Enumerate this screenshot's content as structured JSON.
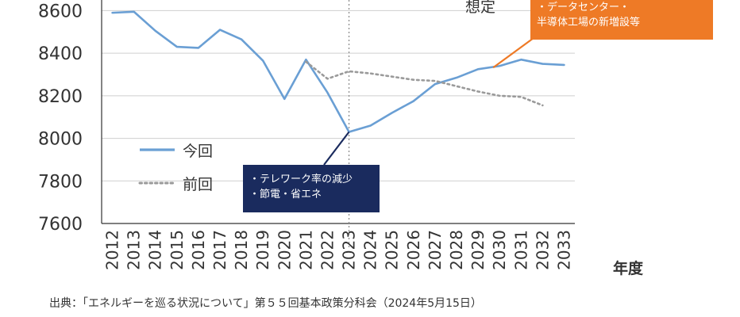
{
  "chart_data": {
    "type": "line",
    "x": [
      "2012",
      "2013",
      "2014",
      "2015",
      "2016",
      "2017",
      "2018",
      "2019",
      "2020",
      "2021",
      "2022",
      "2023",
      "2024",
      "2025",
      "2026",
      "2027",
      "2028",
      "2029",
      "2030",
      "2031",
      "2032",
      "2033"
    ],
    "series": [
      {
        "name": "今回",
        "style": "solid",
        "color": "#6a9fd4",
        "values": [
          8590,
          8595,
          8505,
          8430,
          8425,
          8510,
          8465,
          8365,
          8185,
          8370,
          8215,
          8030,
          8060,
          8120,
          8175,
          8255,
          8285,
          8325,
          8340,
          8370,
          8350,
          8345
        ]
      },
      {
        "name": "前回",
        "style": "dotted",
        "color": "#9a9a9a",
        "values": [
          null,
          null,
          null,
          null,
          null,
          null,
          null,
          null,
          null,
          8360,
          8280,
          8315,
          8305,
          8290,
          8275,
          8270,
          8245,
          8220,
          8200,
          8195,
          8155,
          null
        ]
      }
    ],
    "yticks": [
      7600,
      7800,
      8000,
      8200,
      8400,
      8600
    ],
    "ylim": [
      7600,
      8650
    ],
    "xlabel": "年度",
    "ylabel": "",
    "grid": true,
    "legend_position": "center-left",
    "vertical_marker_at": "2023"
  },
  "annotations": {
    "assume_label": "想定",
    "orange_callout": [
      "・データセンター・",
      "半導体工場の新増設等"
    ],
    "navy_callout": [
      "・テレワーク率の減少",
      "・節電・省エネ"
    ]
  },
  "source": "出典：「エネルギーを巡る状況について」第５５回基本政策分科会（2024年5月15日）",
  "colors": {
    "current": "#6a9fd4",
    "previous": "#9a9a9a",
    "orange": "#ee7a26",
    "navy": "#1a2b5e",
    "grid": "#cfcfcf"
  }
}
